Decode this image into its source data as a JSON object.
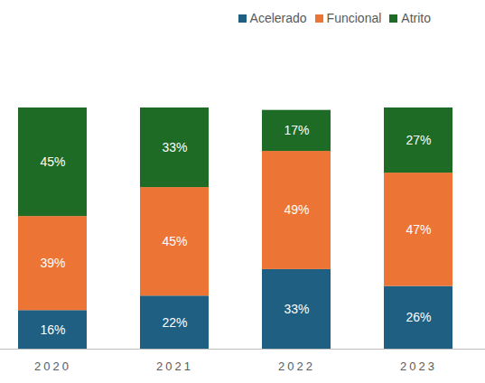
{
  "chart_data": {
    "type": "bar",
    "stacked": true,
    "data_labels": true,
    "tick_labels": "x",
    "legend": "top-right",
    "categories": [
      "2020",
      "2021",
      "2022",
      "2023"
    ],
    "series": [
      {
        "name": "Acelerado",
        "color": "#1f5f82",
        "values": [
          16,
          22,
          33,
          26
        ],
        "value_labels": [
          "16%",
          "22%",
          "33%",
          "26%"
        ]
      },
      {
        "name": "Funcional",
        "color": "#ec7434",
        "values": [
          39,
          45,
          49,
          47
        ],
        "value_labels": [
          "39%",
          "45%",
          "49%",
          "47%"
        ]
      },
      {
        "name": "Atrito",
        "color": "#1e6b25",
        "values": [
          45,
          33,
          17,
          27
        ],
        "value_labels": [
          "45%",
          "33%",
          "17%",
          "27%"
        ]
      }
    ]
  }
}
